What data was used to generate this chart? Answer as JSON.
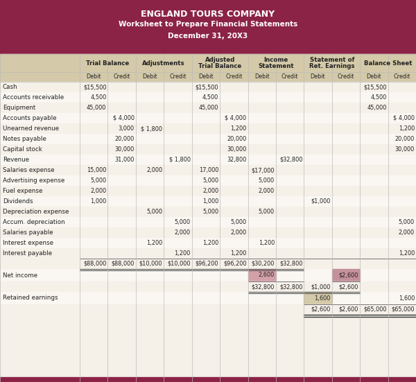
{
  "title_line1": "ENGLAND TOURS COMPANY",
  "title_line2": "Worksheet to Prepare Financial Statements",
  "title_line3": "December 31, 20X3",
  "header_color": "#8B2346",
  "subheader_bg": "#D4C9A8",
  "row_bg_light": "#F5F0E8",
  "row_bg_lighter": "#FAF7F2",
  "col_groups": [
    "Trial Balance",
    "Adjustments",
    "Adjusted\nTrial Balance",
    "Income\nStatement",
    "Statement of\nRet. Earnings",
    "Balance Sheet"
  ],
  "accounts": [
    "Cash",
    "Accounts receivable",
    "Equipment",
    "Accounts payable",
    "Unearned revenue",
    "Notes payable",
    "Capital stock",
    "Revenue",
    "Salaries expense",
    "Advertising expense",
    "Fuel expense",
    "Dividends",
    "Depreciation expense",
    "Accum. depreciation",
    "Salaries payable",
    "Interest expense",
    "Interest payable"
  ],
  "data": [
    [
      "$15,500",
      "",
      "",
      "",
      "$15,500",
      "",
      "",
      "",
      "",
      "",
      "$15,500",
      ""
    ],
    [
      "4,500",
      "",
      "",
      "",
      "4,500",
      "",
      "",
      "",
      "",
      "",
      "4,500",
      ""
    ],
    [
      "45,000",
      "",
      "",
      "",
      "45,000",
      "",
      "",
      "",
      "",
      "",
      "45,000",
      ""
    ],
    [
      "",
      "$ 4,000",
      "",
      "",
      "",
      "$ 4,000",
      "",
      "",
      "",
      "",
      "",
      "$ 4,000"
    ],
    [
      "",
      "3,000",
      "$ 1,800",
      "",
      "",
      "1,200",
      "",
      "",
      "",
      "",
      "",
      "1,200"
    ],
    [
      "",
      "20,000",
      "",
      "",
      "",
      "20,000",
      "",
      "",
      "",
      "",
      "",
      "20,000"
    ],
    [
      "",
      "30,000",
      "",
      "",
      "",
      "30,000",
      "",
      "",
      "",
      "",
      "",
      "30,000"
    ],
    [
      "",
      "31,000",
      "",
      "$ 1,800",
      "",
      "32,800",
      "",
      "$32,800",
      "",
      "",
      "",
      ""
    ],
    [
      "15,000",
      "",
      "2,000",
      "",
      "17,000",
      "",
      "$17,000",
      "",
      "",
      "",
      "",
      ""
    ],
    [
      "5,000",
      "",
      "",
      "",
      "5,000",
      "",
      "5,000",
      "",
      "",
      "",
      "",
      ""
    ],
    [
      "2,000",
      "",
      "",
      "",
      "2,000",
      "",
      "2,000",
      "",
      "",
      "",
      "",
      ""
    ],
    [
      "1,000",
      "",
      "",
      "",
      "1,000",
      "",
      "",
      "",
      "$1,000",
      "",
      "",
      ""
    ],
    [
      "",
      "",
      "5,000",
      "",
      "5,000",
      "",
      "5,000",
      "",
      "",
      "",
      "",
      ""
    ],
    [
      "",
      "",
      "",
      "5,000",
      "",
      "5,000",
      "",
      "",
      "",
      "",
      "",
      "5,000"
    ],
    [
      "",
      "",
      "",
      "2,000",
      "",
      "2,000",
      "",
      "",
      "",
      "",
      "",
      "2,000"
    ],
    [
      "",
      "",
      "1,200",
      "",
      "1,200",
      "",
      "1,200",
      "",
      "",
      "",
      "",
      ""
    ],
    [
      "",
      "",
      "",
      "1,200",
      "",
      "1,200",
      "",
      "",
      "",
      "",
      "",
      "1,200"
    ]
  ],
  "totals_row": [
    "$88,000",
    "$88,000",
    "$10,000",
    "$10,000",
    "$96,200",
    "$96,200",
    "$30,200",
    "$32,800",
    "",
    "",
    "",
    ""
  ],
  "net_income_row": [
    "",
    "",
    "",
    "",
    "",
    "",
    "2,600",
    "",
    "",
    "$2,600",
    "",
    ""
  ],
  "totals2_row": [
    "",
    "",
    "",
    "",
    "",
    "",
    "$32,800",
    "$32,800",
    "$1,000",
    "$2,600",
    "",
    ""
  ],
  "retained_earnings_row": [
    "",
    "",
    "",
    "",
    "",
    "",
    "",
    "",
    "1,600",
    "",
    "",
    "1,600"
  ],
  "final_totals_row": [
    "",
    "",
    "",
    "",
    "",
    "",
    "",
    "",
    "$2,600",
    "$2,600",
    "$65,000",
    "$65,000"
  ],
  "net_income_highlight_debit": "#D4A0A8",
  "net_income_highlight_credit": "#C4909A",
  "retained_earnings_highlight": "#D4C9A8"
}
